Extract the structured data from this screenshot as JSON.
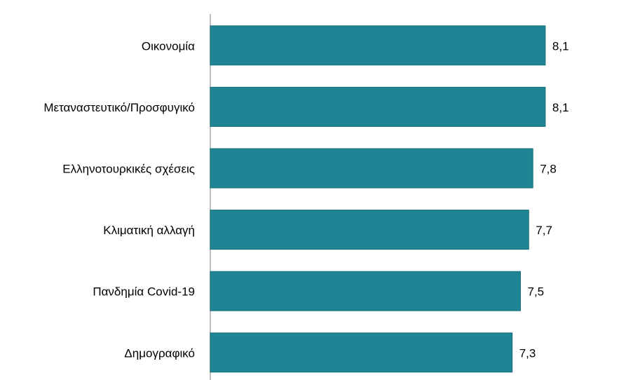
{
  "chart_data": {
    "type": "hbar",
    "categories": [
      "Οικονομία",
      "Μεταναστευτικό/Προσφυγικό",
      "Ελληνοτουρκικές σχέσεις",
      "Κλιματική αλλαγή",
      "Πανδημία Covid-19",
      "Δημογραφικό"
    ],
    "values": [
      8.1,
      8.1,
      7.8,
      7.7,
      7.5,
      7.3
    ],
    "value_labels": [
      "8,1",
      "8,1",
      "7,8",
      "7,7",
      "7,5",
      "7,3"
    ],
    "color": "#1f8595",
    "xlim": [
      0,
      10
    ]
  }
}
